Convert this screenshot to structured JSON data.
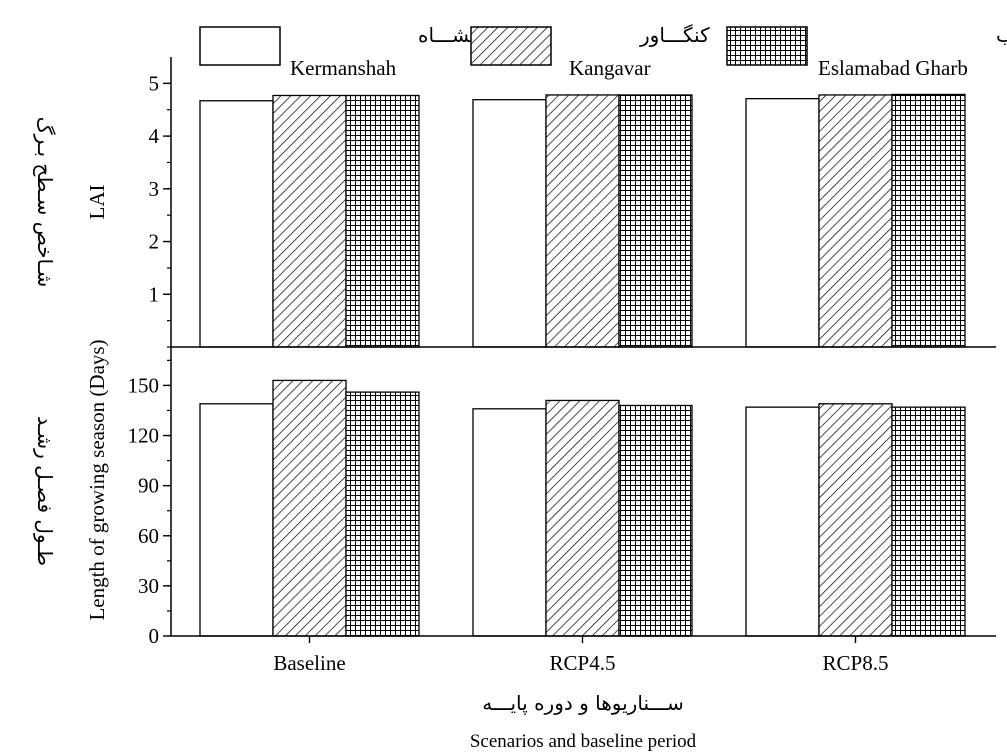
{
  "chart_data": [
    {
      "type": "bar",
      "panel": "top",
      "categories": [
        "Baseline",
        "RCP4.5",
        "RCP8.5"
      ],
      "series": [
        {
          "name": "Kermanshah",
          "name_fa": "کرمانشـــاه",
          "values": [
            4.67,
            4.69,
            4.71
          ]
        },
        {
          "name": "Kangavar",
          "name_fa": "کنگـــاور",
          "values": [
            4.77,
            4.78,
            4.78
          ]
        },
        {
          "name": "Eslamabad Gharb",
          "name_fa": "اسـلام آبـاد غـرب",
          "values": [
            4.77,
            4.78,
            4.79
          ]
        }
      ],
      "ylabel": "LAI",
      "ylabel_fa": "شـاخص سـطح بـرگ",
      "ylim": [
        0,
        5.5
      ],
      "yticks": [
        1,
        2,
        3,
        4,
        5
      ],
      "legend": "top"
    },
    {
      "type": "bar",
      "panel": "bottom",
      "categories": [
        "Baseline",
        "RCP4.5",
        "RCP8.5"
      ],
      "series": [
        {
          "name": "Kermanshah",
          "values": [
            139,
            136,
            137
          ]
        },
        {
          "name": "Kangavar",
          "values": [
            153,
            141,
            139
          ]
        },
        {
          "name": "Eslamabad Gharb",
          "values": [
            146,
            138,
            137
          ]
        }
      ],
      "ylabel": "Length of growing season (Days)",
      "ylabel_fa": "طـول فصـل رشـد",
      "ylim": [
        0,
        173
      ],
      "yticks": [
        0,
        30,
        60,
        90,
        120,
        150
      ],
      "xlabel": "Scenarios and baseline period",
      "xlabel_fa": "ســـناریوها و دوره پایـــه"
    }
  ],
  "series_fills": [
    "plain",
    "diagonal-hatch",
    "grid-hatch"
  ],
  "colors": {
    "stroke": "#000000",
    "background": "#ffffff"
  }
}
